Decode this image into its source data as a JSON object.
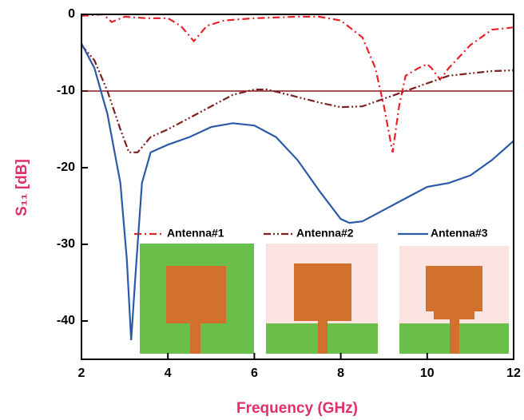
{
  "chart_data": {
    "type": "line",
    "x_label": "Frequency (GHz)",
    "y_label": "S₁₁ [dB]",
    "xlim": [
      2,
      12
    ],
    "xticks": [
      2,
      4,
      6,
      8,
      10,
      12
    ],
    "ylim": [
      -45,
      0
    ],
    "yticks": [
      0,
      -10,
      -20,
      -30,
      -40
    ],
    "reference_line": -10,
    "reference_color": "#8b1a1a",
    "series": [
      {
        "name": "Antenna#1",
        "color": "#e8202a",
        "linestyle": "dashdot",
        "x": [
          2,
          2.5,
          2.7,
          3,
          3.5,
          4,
          4.3,
          4.6,
          4.9,
          5.3,
          6,
          7,
          7.5,
          8,
          8.5,
          8.8,
          9.0,
          9.2,
          9.35,
          9.5,
          9.8,
          10,
          10.1,
          10.3,
          10.5,
          11,
          11.5,
          12
        ],
        "values": [
          -0.2,
          0,
          -1,
          -0.3,
          -0.5,
          -0.5,
          -1.5,
          -3.5,
          -1.5,
          -0.8,
          -0.5,
          -0.3,
          -0.3,
          -0.8,
          -3,
          -7,
          -12,
          -18,
          -12,
          -8,
          -7,
          -6.5,
          -7,
          -8.5,
          -7,
          -4,
          -2,
          -1.7
        ]
      },
      {
        "name": "Antenna#2",
        "color": "#7b1f1f",
        "linestyle": "dashdotdot",
        "x": [
          2,
          2.3,
          2.6,
          2.9,
          3.1,
          3.3,
          3.6,
          4,
          4.5,
          5,
          5.5,
          6,
          6.3,
          6.8,
          7.5,
          8,
          8.5,
          9,
          9.5,
          10,
          10.5,
          11,
          11.5,
          12
        ],
        "values": [
          -4,
          -6,
          -10,
          -15,
          -18,
          -18,
          -16,
          -15,
          -13.5,
          -12,
          -10.5,
          -9.8,
          -9.8,
          -10.5,
          -11.5,
          -12.1,
          -12,
          -11,
          -10,
          -9,
          -8,
          -7.7,
          -7.4,
          -7.3
        ]
      },
      {
        "name": "Antenna#3",
        "color": "#2b5aa8",
        "linestyle": "solid",
        "x": [
          2,
          2.3,
          2.6,
          2.9,
          3.05,
          3.15,
          3.25,
          3.4,
          3.6,
          4,
          4.5,
          5,
          5.5,
          6,
          6.5,
          7,
          7.5,
          8,
          8.2,
          8.5,
          9,
          9.5,
          10,
          10.5,
          11,
          11.5,
          12
        ],
        "values": [
          -3.8,
          -7,
          -13,
          -22,
          -32,
          -42.5,
          -34,
          -22,
          -18,
          -17,
          -16,
          -14.7,
          -14.2,
          -14.5,
          -16,
          -19,
          -23,
          -26.7,
          -27.2,
          -27,
          -25.5,
          -24,
          -22.5,
          -22,
          -21,
          -19,
          -16.5
        ]
      }
    ]
  }
}
